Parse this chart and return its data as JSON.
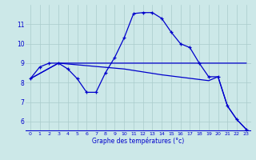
{
  "xlabel": "Graphe des températures (°c)",
  "background_color": "#cce8e8",
  "line_color": "#0000cc",
  "grid_color": "#aacccc",
  "ylim": [
    5.5,
    12.0
  ],
  "xlim": [
    -0.5,
    23.5
  ],
  "yticks": [
    6,
    7,
    8,
    9,
    10,
    11
  ],
  "xticks": [
    0,
    1,
    2,
    3,
    4,
    5,
    6,
    7,
    8,
    9,
    10,
    11,
    12,
    13,
    14,
    15,
    16,
    17,
    18,
    19,
    20,
    21,
    22,
    23
  ],
  "line1_x": [
    0,
    1,
    2,
    3,
    4,
    5,
    6,
    7,
    8,
    9,
    10,
    11,
    12,
    13,
    14,
    15,
    16,
    17,
    18,
    19,
    20,
    21,
    22,
    23
  ],
  "line1_y": [
    8.2,
    8.8,
    9.0,
    9.0,
    8.7,
    8.2,
    7.5,
    7.5,
    8.5,
    9.3,
    10.3,
    11.55,
    11.6,
    11.6,
    11.3,
    10.6,
    10.0,
    9.8,
    9.0,
    8.3,
    8.3,
    6.8,
    6.1,
    5.6
  ],
  "line2_x": [
    0,
    3,
    23
  ],
  "line2_y": [
    8.2,
    9.0,
    9.0
  ],
  "line3_x": [
    0,
    3,
    10,
    14,
    19,
    20,
    21,
    22,
    23
  ],
  "line3_y": [
    8.2,
    9.0,
    8.7,
    8.4,
    8.1,
    8.3,
    6.8,
    6.1,
    5.6
  ]
}
